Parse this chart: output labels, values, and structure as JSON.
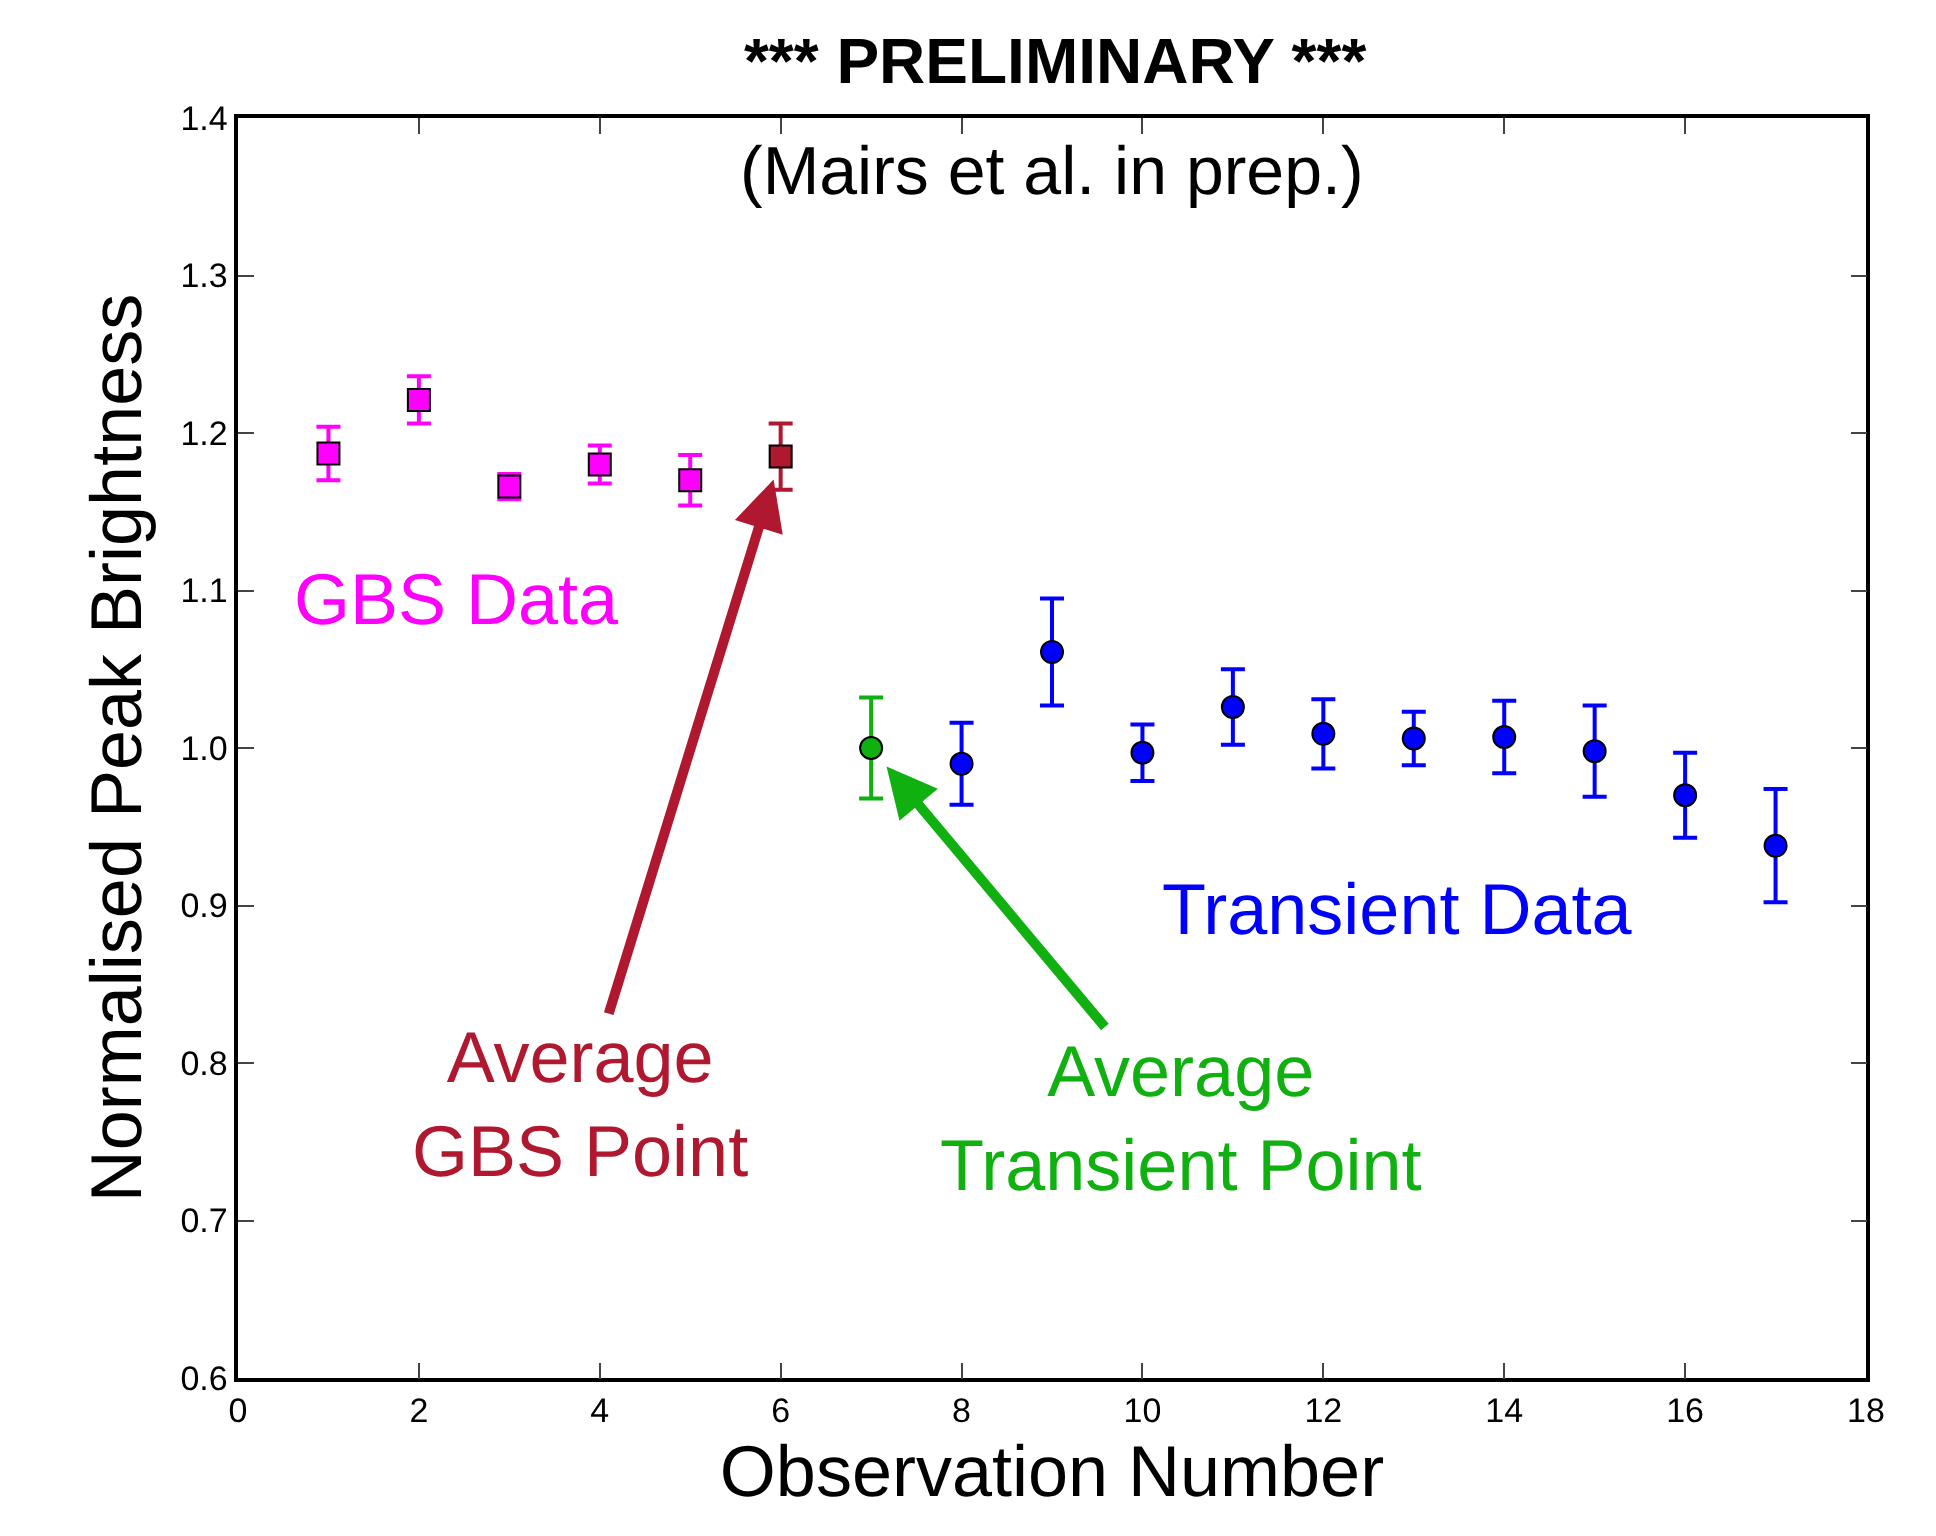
{
  "chart_data": {
    "type": "scatter",
    "title": "*** PRELIMINARY ***",
    "xlabel": "Observation Number",
    "ylabel": "Normalised Peak Brightness",
    "annotations": [
      "(Mairs et al. in prep.)"
    ],
    "xlim": [
      0,
      18
    ],
    "xticks": [
      0,
      2,
      4,
      6,
      8,
      10,
      12,
      14,
      16,
      18
    ],
    "ylim": [
      0.6,
      1.4
    ],
    "yticks": [
      0.6,
      0.7,
      0.8,
      0.9,
      {
        "value": 1.0,
        "label": "1.0"
      },
      1.1,
      1.2,
      1.3,
      1.4
    ],
    "grid": false,
    "legend": false,
    "series": [
      {
        "name": "GBS Data",
        "color": "#ff00ff",
        "marker": "square",
        "x": [
          1,
          2,
          3,
          4,
          5
        ],
        "values": [
          1.187,
          1.221,
          1.166,
          1.18,
          1.17
        ],
        "errors": [
          0.017,
          0.015,
          0.008,
          0.012,
          0.016
        ]
      },
      {
        "name": "Average GBS Point",
        "color": "#b01830",
        "marker": "square",
        "x": [
          6
        ],
        "values": [
          1.185
        ],
        "errors": [
          0.021
        ]
      },
      {
        "name": "Average Transient Point",
        "color": "#10b010",
        "marker": "circle",
        "x": [
          7
        ],
        "values": [
          1.0
        ],
        "errors": [
          0.032
        ]
      },
      {
        "name": "Transient Data",
        "color": "#0000ff",
        "marker": "circle",
        "x": [
          8,
          9,
          10,
          11,
          12,
          13,
          14,
          15,
          16,
          17
        ],
        "values": [
          0.99,
          1.061,
          0.997,
          1.026,
          1.009,
          1.006,
          1.007,
          0.998,
          0.97,
          0.938
        ],
        "errors": [
          0.026,
          0.034,
          0.018,
          0.024,
          0.022,
          0.017,
          0.023,
          0.029,
          0.027,
          0.036
        ]
      }
    ]
  }
}
